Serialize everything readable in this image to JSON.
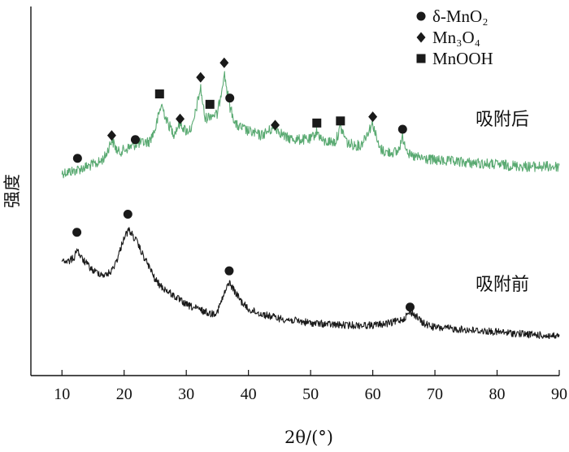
{
  "chart_data": {
    "type": "line",
    "xlabel": "2θ/(°)",
    "ylabel": "强度",
    "xlim": [
      5,
      90
    ],
    "x_ticks": [
      "10",
      "20",
      "30",
      "40",
      "50",
      "60",
      "70",
      "80",
      "90"
    ],
    "y_ticks": [],
    "grid": false,
    "legend_position": "top-right",
    "legend": [
      {
        "marker": "circle",
        "label": "δ-MnO₂"
      },
      {
        "marker": "diamond",
        "label": "Mn₃O₄"
      },
      {
        "marker": "square",
        "label": "MnOOH"
      }
    ],
    "series": [
      {
        "name": "吸附后",
        "color": "#5aaa72",
        "x": [
          10,
          12,
          14,
          16,
          17,
          18,
          19,
          20,
          22,
          24,
          25,
          26,
          27,
          28,
          29,
          30,
          31,
          32.3,
          33,
          34,
          35,
          36.1,
          37,
          38,
          40,
          42,
          44.3,
          46,
          48,
          50,
          51,
          52,
          54,
          54.8,
          56,
          58,
          60,
          61,
          62,
          64,
          64.8,
          66,
          68,
          70,
          75,
          80,
          85,
          90
        ],
        "y": [
          0.52,
          0.53,
          0.55,
          0.57,
          0.6,
          0.68,
          0.62,
          0.63,
          0.66,
          0.67,
          0.73,
          0.85,
          0.76,
          0.71,
          0.76,
          0.72,
          0.74,
          0.93,
          0.78,
          0.8,
          0.8,
          1.0,
          0.84,
          0.75,
          0.72,
          0.7,
          0.74,
          0.69,
          0.68,
          0.68,
          0.72,
          0.67,
          0.67,
          0.74,
          0.66,
          0.65,
          0.76,
          0.64,
          0.62,
          0.62,
          0.69,
          0.6,
          0.59,
          0.58,
          0.57,
          0.56,
          0.55,
          0.55
        ]
      },
      {
        "name": "吸附前",
        "color": "#1a1a1a",
        "x": [
          10,
          11,
          12,
          12.4,
          13,
          14,
          15,
          16,
          17,
          18,
          19,
          20,
          20.8,
          22,
          23,
          24,
          25,
          26,
          27,
          28,
          29,
          30,
          32,
          34,
          35,
          36,
          36.9,
          38,
          39,
          40,
          42,
          45,
          50,
          55,
          60,
          63,
          64,
          65,
          66,
          67,
          68,
          70,
          75,
          80,
          85,
          90
        ],
        "y": [
          0.2,
          0.19,
          0.21,
          0.25,
          0.21,
          0.18,
          0.15,
          0.14,
          0.13,
          0.15,
          0.21,
          0.3,
          0.33,
          0.28,
          0.22,
          0.17,
          0.11,
          0.08,
          0.06,
          0.04,
          0.02,
          0.0,
          -0.02,
          -0.04,
          -0.03,
          0.04,
          0.1,
          0.05,
          0.01,
          -0.02,
          -0.04,
          -0.06,
          -0.08,
          -0.09,
          -0.09,
          -0.08,
          -0.07,
          -0.06,
          -0.03,
          -0.05,
          -0.08,
          -0.1,
          -0.11,
          -0.12,
          -0.13,
          -0.14
        ]
      }
    ],
    "series_labels": [
      "吸附后",
      "吸附前"
    ],
    "peak_markers": [
      {
        "series": 0,
        "marker": "circle",
        "x": 12.5,
        "y": 0.59
      },
      {
        "series": 0,
        "marker": "diamond",
        "x": 18.0,
        "y": 0.7
      },
      {
        "series": 0,
        "marker": "circle",
        "x": 21.8,
        "y": 0.68
      },
      {
        "series": 0,
        "marker": "square",
        "x": 25.7,
        "y": 0.9
      },
      {
        "series": 0,
        "marker": "diamond",
        "x": 29.0,
        "y": 0.78
      },
      {
        "series": 0,
        "marker": "diamond",
        "x": 32.3,
        "y": 0.98
      },
      {
        "series": 0,
        "marker": "square",
        "x": 33.8,
        "y": 0.85
      },
      {
        "series": 0,
        "marker": "diamond",
        "x": 36.1,
        "y": 1.05
      },
      {
        "series": 0,
        "marker": "circle",
        "x": 37.0,
        "y": 0.88
      },
      {
        "series": 0,
        "marker": "diamond",
        "x": 44.3,
        "y": 0.75
      },
      {
        "series": 0,
        "marker": "square",
        "x": 51.0,
        "y": 0.76
      },
      {
        "series": 0,
        "marker": "square",
        "x": 54.8,
        "y": 0.77
      },
      {
        "series": 0,
        "marker": "diamond",
        "x": 60.0,
        "y": 0.79
      },
      {
        "series": 0,
        "marker": "circle",
        "x": 64.8,
        "y": 0.73
      },
      {
        "series": 1,
        "marker": "circle",
        "x": 12.4,
        "y": 0.32
      },
      {
        "series": 1,
        "marker": "circle",
        "x": 20.6,
        "y": 0.4
      },
      {
        "series": 1,
        "marker": "circle",
        "x": 36.9,
        "y": 0.15
      },
      {
        "series": 1,
        "marker": "circle",
        "x": 66.0,
        "y": -0.01
      }
    ]
  }
}
